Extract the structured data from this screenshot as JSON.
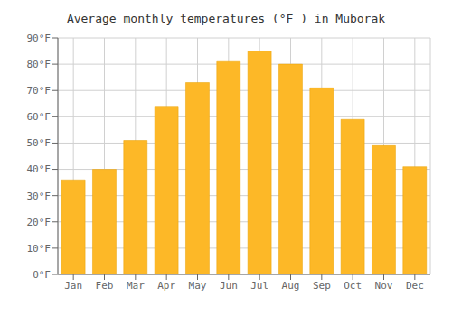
{
  "chart_data": {
    "type": "bar",
    "title": "Average monthly temperatures (°F ) in Muborak",
    "categories": [
      "Jan",
      "Feb",
      "Mar",
      "Apr",
      "May",
      "Jun",
      "Jul",
      "Aug",
      "Sep",
      "Oct",
      "Nov",
      "Dec"
    ],
    "values": [
      36,
      40,
      51,
      64,
      73,
      81,
      85,
      80,
      71,
      59,
      49,
      41
    ],
    "color": "#FDB827",
    "ylim": [
      0,
      90
    ],
    "yticks": [
      {
        "value": 0,
        "label": "0°F"
      },
      {
        "value": 10,
        "label": "10°F"
      },
      {
        "value": 20,
        "label": "20°F"
      },
      {
        "value": 30,
        "label": "30°F"
      },
      {
        "value": 40,
        "label": "40°F"
      },
      {
        "value": 50,
        "label": "50°F"
      },
      {
        "value": 60,
        "label": "60°F"
      },
      {
        "value": 70,
        "label": "70°F"
      },
      {
        "value": 80,
        "label": "80°F"
      },
      {
        "value": 90,
        "label": "90°F"
      }
    ],
    "grid": true
  }
}
